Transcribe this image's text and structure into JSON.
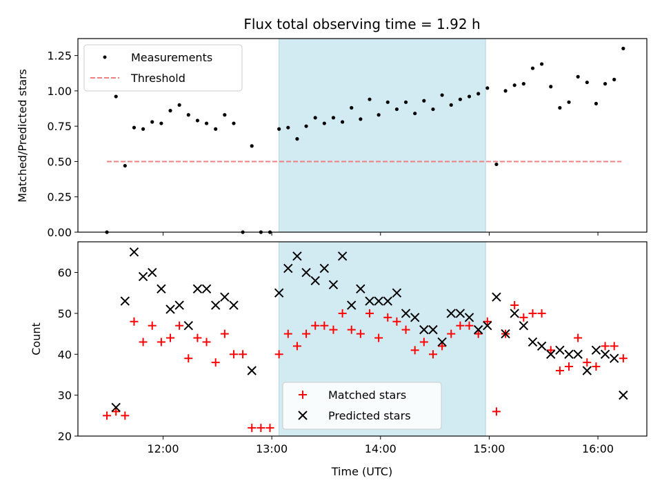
{
  "chart_data": {
    "type": "scatter",
    "title": "Flux total observing time = 1.92 h",
    "shaded_interval": [
      "13:04",
      "14:58"
    ],
    "shade_color": "#add8e6",
    "top": {
      "ylabel": "Matched/Predicted stars",
      "ylim": [
        0,
        1.37
      ],
      "yticks": [
        "0.00",
        "0.25",
        "0.50",
        "0.75",
        "1.00",
        "1.25"
      ],
      "legend_placement": "upper-left",
      "threshold": {
        "name": "Threshold",
        "value": 0.5,
        "x_start": "11:29",
        "x_end": "16:13",
        "color": "#f08080"
      },
      "measurements": {
        "name": "Measurements",
        "color": "#000000",
        "points": [
          [
            "11:29",
            0.0
          ],
          [
            "11:34",
            0.96
          ],
          [
            "11:39",
            0.47
          ],
          [
            "11:44",
            0.74
          ],
          [
            "11:49",
            0.73
          ],
          [
            "11:54",
            0.78
          ],
          [
            "11:59",
            0.77
          ],
          [
            "12:04",
            0.86
          ],
          [
            "12:09",
            0.9
          ],
          [
            "12:14",
            0.83
          ],
          [
            "12:19",
            0.79
          ],
          [
            "12:24",
            0.77
          ],
          [
            "12:29",
            0.73
          ],
          [
            "12:34",
            0.83
          ],
          [
            "12:39",
            0.77
          ],
          [
            "12:44",
            0.0
          ],
          [
            "12:49",
            0.61
          ],
          [
            "12:54",
            0.0
          ],
          [
            "12:59",
            0.0
          ],
          [
            "13:04",
            0.73
          ],
          [
            "13:09",
            0.74
          ],
          [
            "13:14",
            0.66
          ],
          [
            "13:19",
            0.75
          ],
          [
            "13:24",
            0.81
          ],
          [
            "13:29",
            0.77
          ],
          [
            "13:34",
            0.81
          ],
          [
            "13:39",
            0.78
          ],
          [
            "13:44",
            0.88
          ],
          [
            "13:49",
            0.8
          ],
          [
            "13:54",
            0.94
          ],
          [
            "13:59",
            0.83
          ],
          [
            "14:04",
            0.92
          ],
          [
            "14:09",
            0.87
          ],
          [
            "14:14",
            0.92
          ],
          [
            "14:19",
            0.84
          ],
          [
            "14:24",
            0.93
          ],
          [
            "14:29",
            0.87
          ],
          [
            "14:34",
            0.97
          ],
          [
            "14:39",
            0.9
          ],
          [
            "14:44",
            0.94
          ],
          [
            "14:49",
            0.96
          ],
          [
            "14:54",
            0.98
          ],
          [
            "14:59",
            1.02
          ],
          [
            "15:04",
            0.48
          ],
          [
            "15:09",
            1.0
          ],
          [
            "15:14",
            1.04
          ],
          [
            "15:19",
            1.05
          ],
          [
            "15:24",
            1.16
          ],
          [
            "15:29",
            1.19
          ],
          [
            "15:34",
            1.03
          ],
          [
            "15:39",
            0.88
          ],
          [
            "15:44",
            0.92
          ],
          [
            "15:49",
            1.1
          ],
          [
            "15:54",
            1.06
          ],
          [
            "15:59",
            0.91
          ],
          [
            "16:04",
            1.05
          ],
          [
            "16:09",
            1.08
          ],
          [
            "16:14",
            1.3
          ]
        ]
      }
    },
    "bottom": {
      "xlabel": "Time (UTC)",
      "ylabel": "Count",
      "ylim": [
        20,
        67.5
      ],
      "yticks": [
        "20",
        "30",
        "40",
        "50",
        "60"
      ],
      "xticks": [
        "12:00",
        "13:00",
        "14:00",
        "15:00",
        "16:00"
      ],
      "x_range": [
        "11:13",
        "16:27"
      ],
      "legend_placement": "lower-center",
      "series": [
        {
          "name": "Matched stars",
          "marker": "plus",
          "color": "#ff0000",
          "points": [
            [
              "11:29",
              25
            ],
            [
              "11:34",
              26
            ],
            [
              "11:39",
              25
            ],
            [
              "11:44",
              48
            ],
            [
              "11:49",
              43
            ],
            [
              "11:54",
              47
            ],
            [
              "11:59",
              43
            ],
            [
              "12:04",
              44
            ],
            [
              "12:09",
              47
            ],
            [
              "12:14",
              39
            ],
            [
              "12:19",
              44
            ],
            [
              "12:24",
              43
            ],
            [
              "12:29",
              38
            ],
            [
              "12:34",
              45
            ],
            [
              "12:39",
              40
            ],
            [
              "12:44",
              40
            ],
            [
              "12:49",
              22
            ],
            [
              "12:54",
              22
            ],
            [
              "12:59",
              22
            ],
            [
              "13:04",
              40
            ],
            [
              "13:09",
              45
            ],
            [
              "13:14",
              42
            ],
            [
              "13:19",
              45
            ],
            [
              "13:24",
              47
            ],
            [
              "13:29",
              47
            ],
            [
              "13:34",
              46
            ],
            [
              "13:39",
              50
            ],
            [
              "13:44",
              46
            ],
            [
              "13:49",
              45
            ],
            [
              "13:54",
              50
            ],
            [
              "13:59",
              44
            ],
            [
              "14:04",
              49
            ],
            [
              "14:09",
              48
            ],
            [
              "14:14",
              46
            ],
            [
              "14:19",
              41
            ],
            [
              "14:24",
              43
            ],
            [
              "14:29",
              40
            ],
            [
              "14:34",
              42
            ],
            [
              "14:39",
              45
            ],
            [
              "14:44",
              47
            ],
            [
              "14:49",
              47
            ],
            [
              "14:54",
              45
            ],
            [
              "14:59",
              48
            ],
            [
              "15:04",
              26
            ],
            [
              "15:09",
              45
            ],
            [
              "15:14",
              52
            ],
            [
              "15:19",
              49
            ],
            [
              "15:24",
              50
            ],
            [
              "15:29",
              50
            ],
            [
              "15:34",
              41
            ],
            [
              "15:39",
              36
            ],
            [
              "15:44",
              37
            ],
            [
              "15:49",
              44
            ],
            [
              "15:54",
              38
            ],
            [
              "15:59",
              37
            ],
            [
              "16:04",
              42
            ],
            [
              "16:09",
              42
            ],
            [
              "16:14",
              39
            ]
          ]
        },
        {
          "name": "Predicted stars",
          "marker": "x",
          "color": "#000000",
          "points": [
            [
              "11:34",
              27
            ],
            [
              "11:39",
              53
            ],
            [
              "11:44",
              65
            ],
            [
              "11:49",
              59
            ],
            [
              "11:54",
              60
            ],
            [
              "11:59",
              56
            ],
            [
              "12:04",
              51
            ],
            [
              "12:09",
              52
            ],
            [
              "12:14",
              47
            ],
            [
              "12:19",
              56
            ],
            [
              "12:24",
              56
            ],
            [
              "12:29",
              52
            ],
            [
              "12:34",
              54
            ],
            [
              "12:39",
              52
            ],
            [
              "12:49",
              36
            ],
            [
              "13:04",
              55
            ],
            [
              "13:09",
              61
            ],
            [
              "13:14",
              64
            ],
            [
              "13:19",
              60
            ],
            [
              "13:24",
              58
            ],
            [
              "13:29",
              61
            ],
            [
              "13:34",
              57
            ],
            [
              "13:39",
              64
            ],
            [
              "13:44",
              52
            ],
            [
              "13:49",
              56
            ],
            [
              "13:54",
              53
            ],
            [
              "13:59",
              53
            ],
            [
              "14:04",
              53
            ],
            [
              "14:09",
              55
            ],
            [
              "14:14",
              50
            ],
            [
              "14:19",
              49
            ],
            [
              "14:24",
              46
            ],
            [
              "14:29",
              46
            ],
            [
              "14:34",
              43
            ],
            [
              "14:39",
              50
            ],
            [
              "14:44",
              50
            ],
            [
              "14:49",
              49
            ],
            [
              "14:54",
              46
            ],
            [
              "14:59",
              47
            ],
            [
              "15:04",
              54
            ],
            [
              "15:09",
              45
            ],
            [
              "15:14",
              50
            ],
            [
              "15:19",
              47
            ],
            [
              "15:24",
              43
            ],
            [
              "15:29",
              42
            ],
            [
              "15:34",
              40
            ],
            [
              "15:39",
              41
            ],
            [
              "15:44",
              40
            ],
            [
              "15:49",
              40
            ],
            [
              "15:54",
              36
            ],
            [
              "15:59",
              41
            ],
            [
              "16:04",
              40
            ],
            [
              "16:09",
              39
            ],
            [
              "16:14",
              30
            ]
          ]
        }
      ]
    }
  }
}
